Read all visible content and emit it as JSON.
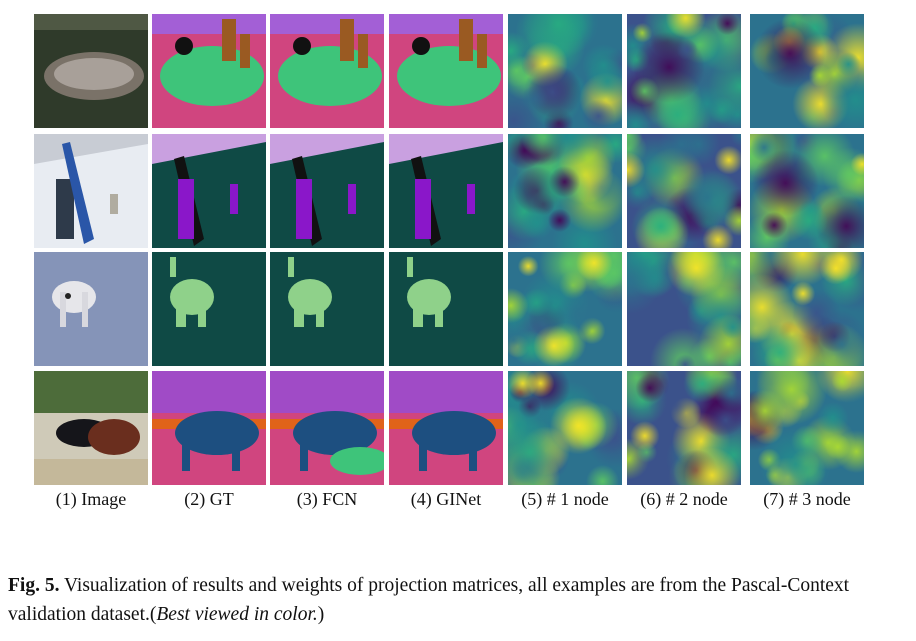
{
  "figure": {
    "column_labels": [
      "(1) Image",
      "(2) GT",
      "(3) FCN",
      "(4) GINet",
      "(5) # 1 node",
      "(6) # 2 node",
      "(7) # 3 node"
    ],
    "caption": {
      "label": "Fig. 5.",
      "text": "Visualization of results and weights of projection matrices, all examples are from the Pascal-Context validation dataset.(",
      "emphasis": "Best viewed in color.",
      "end": ")"
    }
  }
}
